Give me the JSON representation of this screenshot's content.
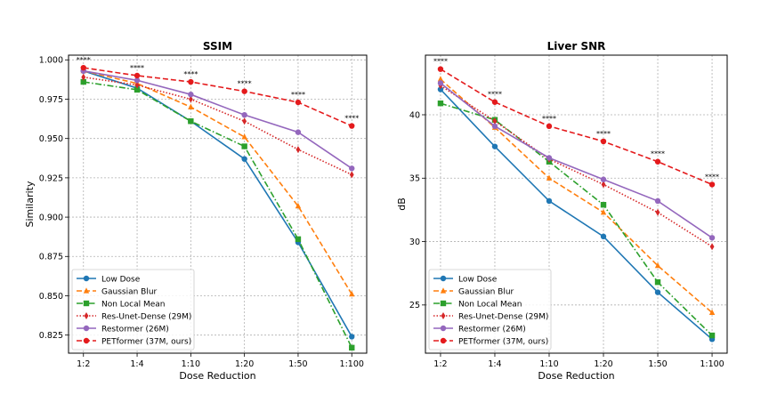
{
  "chart_data": [
    {
      "type": "line",
      "title": "SSIM",
      "xlabel": "Dose Reduction",
      "ylabel": "Similarity",
      "categories": [
        "1:2",
        "1:4",
        "1:10",
        "1:20",
        "1:50",
        "1:100"
      ],
      "ylim": [
        0.8135,
        1.003
      ],
      "yticks": [
        "0.825",
        "0.850",
        "0.875",
        "0.900",
        "0.925",
        "0.950",
        "0.975",
        "1.000"
      ],
      "grid": true,
      "legend_position": "lower-left",
      "series": [
        {
          "name": "Low Dose",
          "color": "#1f77b4",
          "line": "solid",
          "marker": "circle",
          "values": [
            0.993,
            0.982,
            0.961,
            0.937,
            0.884,
            0.824
          ]
        },
        {
          "name": "Gaussian Blur",
          "color": "#ff7f0e",
          "line": "dashed",
          "marker": "triangle",
          "values": [
            0.993,
            0.985,
            0.97,
            0.951,
            0.907,
            0.851
          ]
        },
        {
          "name": "Non Local Mean",
          "color": "#2ca02c",
          "line": "dashdot",
          "marker": "square",
          "values": [
            0.986,
            0.981,
            0.961,
            0.945,
            0.886,
            0.817
          ]
        },
        {
          "name": "Res-Unet-Dense (29M)",
          "color": "#d62728",
          "line": "dotted",
          "marker": "diamond",
          "values": [
            0.989,
            0.984,
            0.975,
            0.961,
            0.943,
            0.927
          ]
        },
        {
          "name": "Restormer (26M)",
          "color": "#9467bd",
          "line": "solid",
          "marker": "circle",
          "values": [
            0.993,
            0.987,
            0.978,
            0.965,
            0.954,
            0.931
          ]
        },
        {
          "name": "PETformer (37M, ours)",
          "color": "#e41a1c",
          "line": "dashed",
          "marker": "circle",
          "values": [
            0.995,
            0.99,
            0.986,
            0.98,
            0.973,
            0.958
          ]
        }
      ],
      "annotations": [
        "****",
        "****",
        "****",
        "****",
        "****",
        "****"
      ]
    },
    {
      "type": "line",
      "title": "Liver SNR",
      "xlabel": "Dose Reduction",
      "ylabel": "dB",
      "categories": [
        "1:2",
        "1:4",
        "1:10",
        "1:20",
        "1:50",
        "1:100"
      ],
      "ylim": [
        21.2,
        44.7
      ],
      "yticks": [
        "25",
        "30",
        "35",
        "40"
      ],
      "grid": true,
      "legend_position": "lower-left",
      "series": [
        {
          "name": "Low Dose",
          "color": "#1f77b4",
          "line": "solid",
          "marker": "circle",
          "values": [
            42.0,
            37.5,
            33.2,
            30.4,
            26.0,
            22.3
          ]
        },
        {
          "name": "Gaussian Blur",
          "color": "#ff7f0e",
          "line": "dashed",
          "marker": "triangle",
          "values": [
            42.8,
            39.0,
            35.0,
            32.3,
            28.1,
            24.4
          ]
        },
        {
          "name": "Non Local Mean",
          "color": "#2ca02c",
          "line": "dashdot",
          "marker": "square",
          "values": [
            40.9,
            39.6,
            36.3,
            32.9,
            26.8,
            22.6
          ]
        },
        {
          "name": "Res-Unet-Dense (29M)",
          "color": "#d62728",
          "line": "dotted",
          "marker": "diamond",
          "values": [
            42.3,
            39.5,
            36.5,
            34.5,
            32.3,
            29.6
          ]
        },
        {
          "name": "Restormer (26M)",
          "color": "#9467bd",
          "line": "solid",
          "marker": "circle",
          "values": [
            42.5,
            39.1,
            36.6,
            34.9,
            33.2,
            30.3
          ]
        },
        {
          "name": "PETformer (37M, ours)",
          "color": "#e41a1c",
          "line": "dashed",
          "marker": "circle",
          "values": [
            43.6,
            41.0,
            39.1,
            37.9,
            36.3,
            34.5
          ]
        }
      ],
      "annotations": [
        "****",
        "****",
        "****",
        "****",
        "****",
        "****"
      ]
    }
  ]
}
